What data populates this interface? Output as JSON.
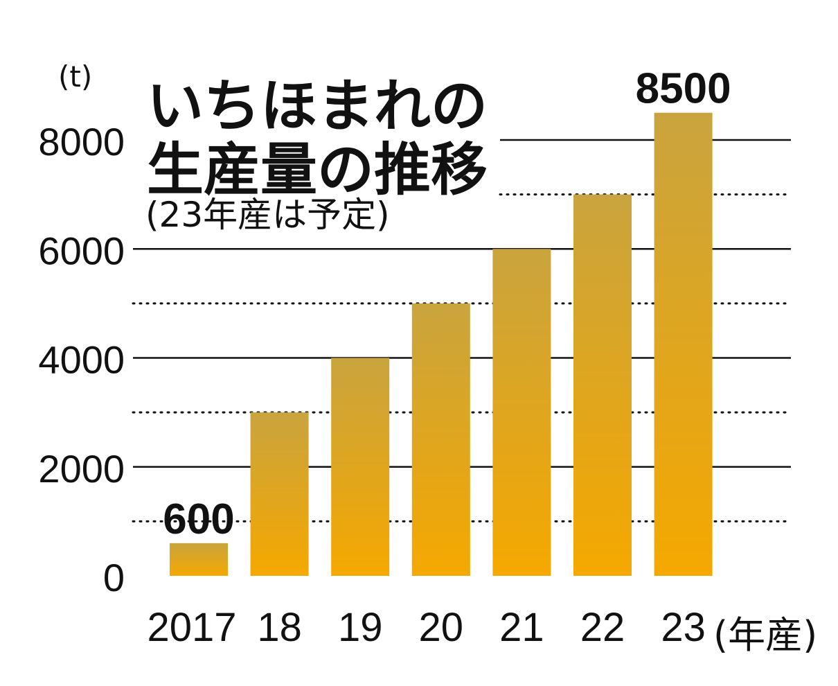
{
  "chart_data": {
    "type": "bar",
    "title_lines": [
      "いちほまれの",
      "生産量の推移"
    ],
    "subtitle": "(23年産は予定)",
    "ylabel": "(t)",
    "xlabel": "(年産)",
    "categories": [
      "2017",
      "18",
      "19",
      "20",
      "21",
      "22",
      "23"
    ],
    "values": [
      600,
      3000,
      4000,
      5000,
      6000,
      7000,
      8500
    ],
    "data_labels": [
      {
        "index": 0,
        "text": "600"
      },
      {
        "index": 6,
        "text": "8500"
      }
    ],
    "ylim": [
      0,
      8000
    ],
    "y_ticks": [
      "0",
      "2000",
      "4000",
      "6000",
      "8000"
    ],
    "y_tick_values": [
      0,
      2000,
      4000,
      6000,
      8000
    ],
    "minor_gridlines": [
      1000,
      3000,
      5000,
      7000
    ],
    "grid": true,
    "colors": {
      "bar_top": "#c9a43e",
      "bar_bottom": "#f5a800",
      "grid": "#111111",
      "text": "#111111"
    }
  }
}
